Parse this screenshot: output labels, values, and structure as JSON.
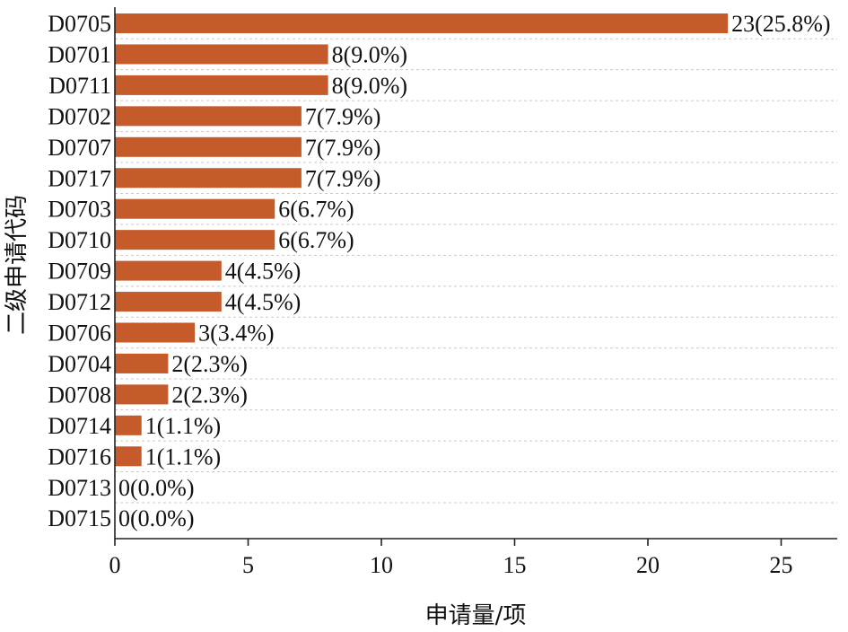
{
  "chart_data": {
    "type": "bar",
    "orientation": "horizontal",
    "categories": [
      "D0705",
      "D0701",
      "D0711",
      "D0702",
      "D0707",
      "D0717",
      "D0703",
      "D0710",
      "D0709",
      "D0712",
      "D0706",
      "D0704",
      "D0708",
      "D0714",
      "D0716",
      "D0713",
      "D0715"
    ],
    "values": [
      23,
      8,
      8,
      7,
      7,
      7,
      6,
      6,
      4,
      4,
      3,
      2,
      2,
      1,
      1,
      0,
      0
    ],
    "data_labels": [
      "23(25.8%)",
      "8(9.0%)",
      "8(9.0%)",
      "7(7.9%)",
      "7(7.9%)",
      "7(7.9%)",
      "6(6.7%)",
      "6(6.7%)",
      "4(4.5%)",
      "4(4.5%)",
      "3(3.4%)",
      "2(2.3%)",
      "2(2.3%)",
      "1(1.1%)",
      "1(1.1%)",
      "0(0.0%)",
      "0(0.0%)"
    ],
    "xlabel": "申请量/项",
    "ylabel": "二级申请代码",
    "xlim": [
      0,
      27
    ],
    "xticks": [
      0,
      5,
      10,
      15,
      20,
      25
    ],
    "bar_color": "#c55a2b",
    "grid": "horizontal dashed",
    "legend": "none"
  }
}
